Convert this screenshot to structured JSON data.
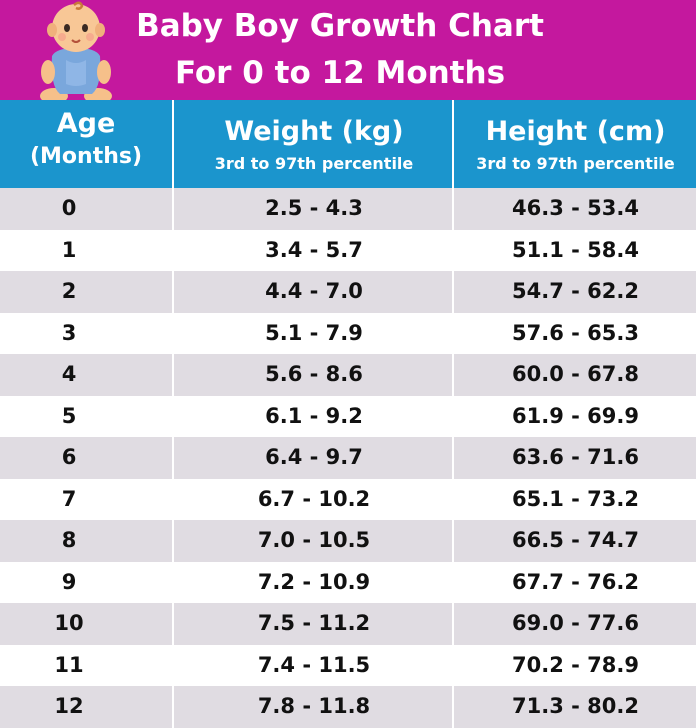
{
  "title": {
    "line1": "Baby Boy Growth Chart",
    "line2": "For 0 to 12 Months"
  },
  "colors": {
    "banner": "#c4189e",
    "header": "#1b95cd",
    "row_shade": "#e0dce2",
    "row_plain": "#ffffff",
    "text": "#111111"
  },
  "icons": {
    "illustration": "baby-icon"
  },
  "chart_data": {
    "type": "table",
    "title": "Baby Boy Growth Chart For 0 to 12 Months",
    "columns": [
      {
        "title": "Age",
        "subtitle": "(Months)"
      },
      {
        "title": "Weight (kg)",
        "subtitle": "3rd to 97th percentile"
      },
      {
        "title": "Height (cm)",
        "subtitle": "3rd to 97th percentile"
      }
    ],
    "rows": [
      [
        "0",
        "2.5 - 4.3",
        "46.3 - 53.4"
      ],
      [
        "1",
        "3.4 - 5.7",
        "51.1 - 58.4"
      ],
      [
        "2",
        "4.4 - 7.0",
        "54.7 - 62.2"
      ],
      [
        "3",
        "5.1 - 7.9",
        "57.6 - 65.3"
      ],
      [
        "4",
        "5.6 - 8.6",
        "60.0 - 67.8"
      ],
      [
        "5",
        "6.1 - 9.2",
        "61.9 - 69.9"
      ],
      [
        "6",
        "6.4 - 9.7",
        "63.6 - 71.6"
      ],
      [
        "7",
        "6.7 - 10.2",
        "65.1 - 73.2"
      ],
      [
        "8",
        "7.0 - 10.5",
        "66.5 - 74.7"
      ],
      [
        "9",
        "7.2 - 10.9",
        "67.7 - 76.2"
      ],
      [
        "10",
        "7.5 - 11.2",
        "69.0 - 77.6"
      ],
      [
        "11",
        "7.4 - 11.5",
        "70.2 - 78.9"
      ],
      [
        "12",
        "7.8 - 11.8",
        "71.3 - 80.2"
      ]
    ]
  }
}
